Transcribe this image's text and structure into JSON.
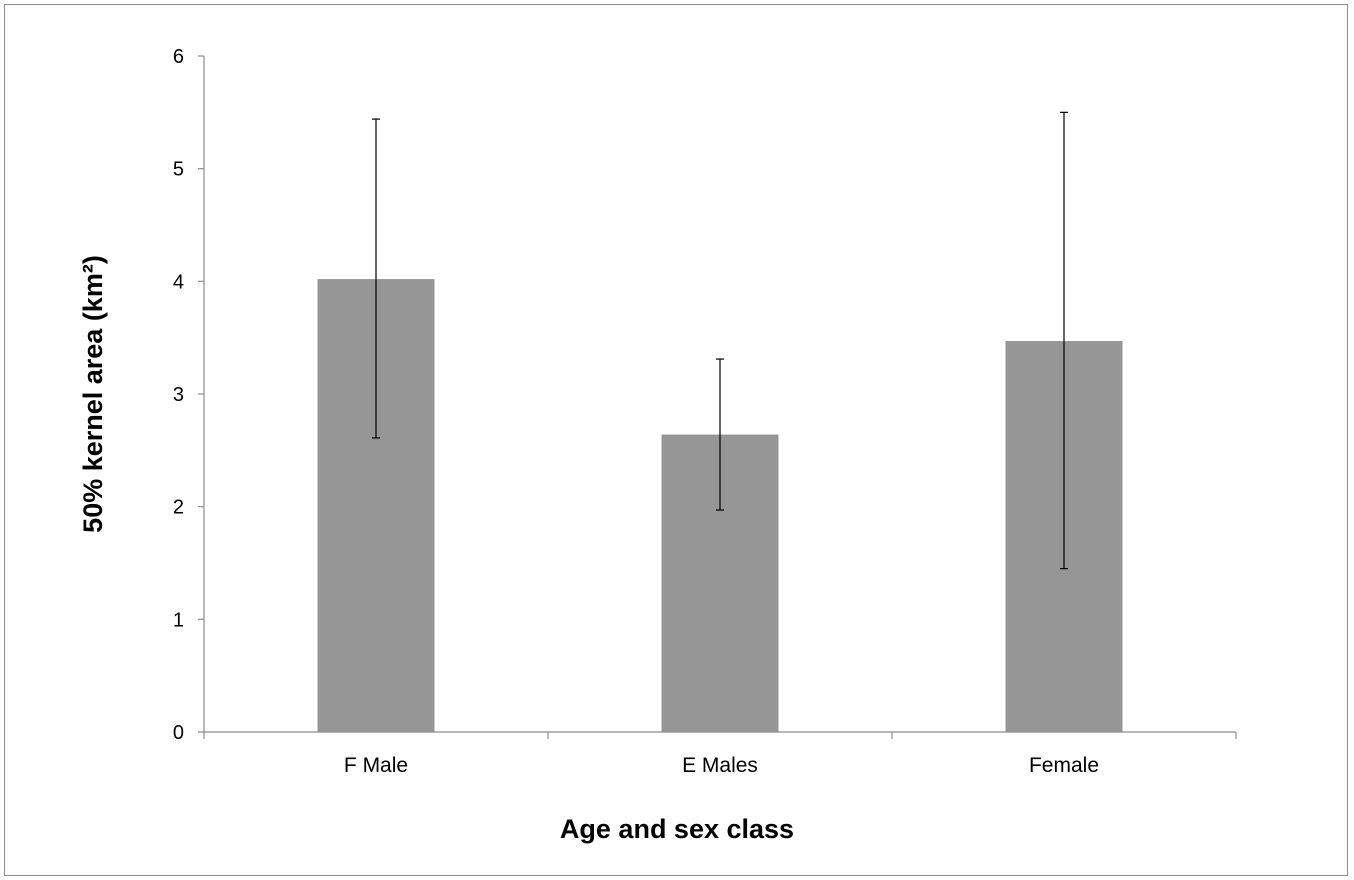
{
  "chart_data": {
    "type": "bar",
    "title": "",
    "xlabel": "Age and sex class",
    "ylabel": "50% kernel  area (km²)",
    "categories": [
      "F Male",
      "E Males",
      "Female"
    ],
    "values": [
      4.02,
      2.64,
      3.47
    ],
    "error_low": [
      2.61,
      1.97,
      1.45
    ],
    "error_high": [
      5.44,
      3.31,
      5.5
    ],
    "ylim": [
      0,
      6
    ],
    "yticks": [
      "0",
      "1",
      "2",
      "3",
      "4",
      "5",
      "6"
    ],
    "grid": false,
    "legend": "none",
    "bar_color": "#969696"
  }
}
